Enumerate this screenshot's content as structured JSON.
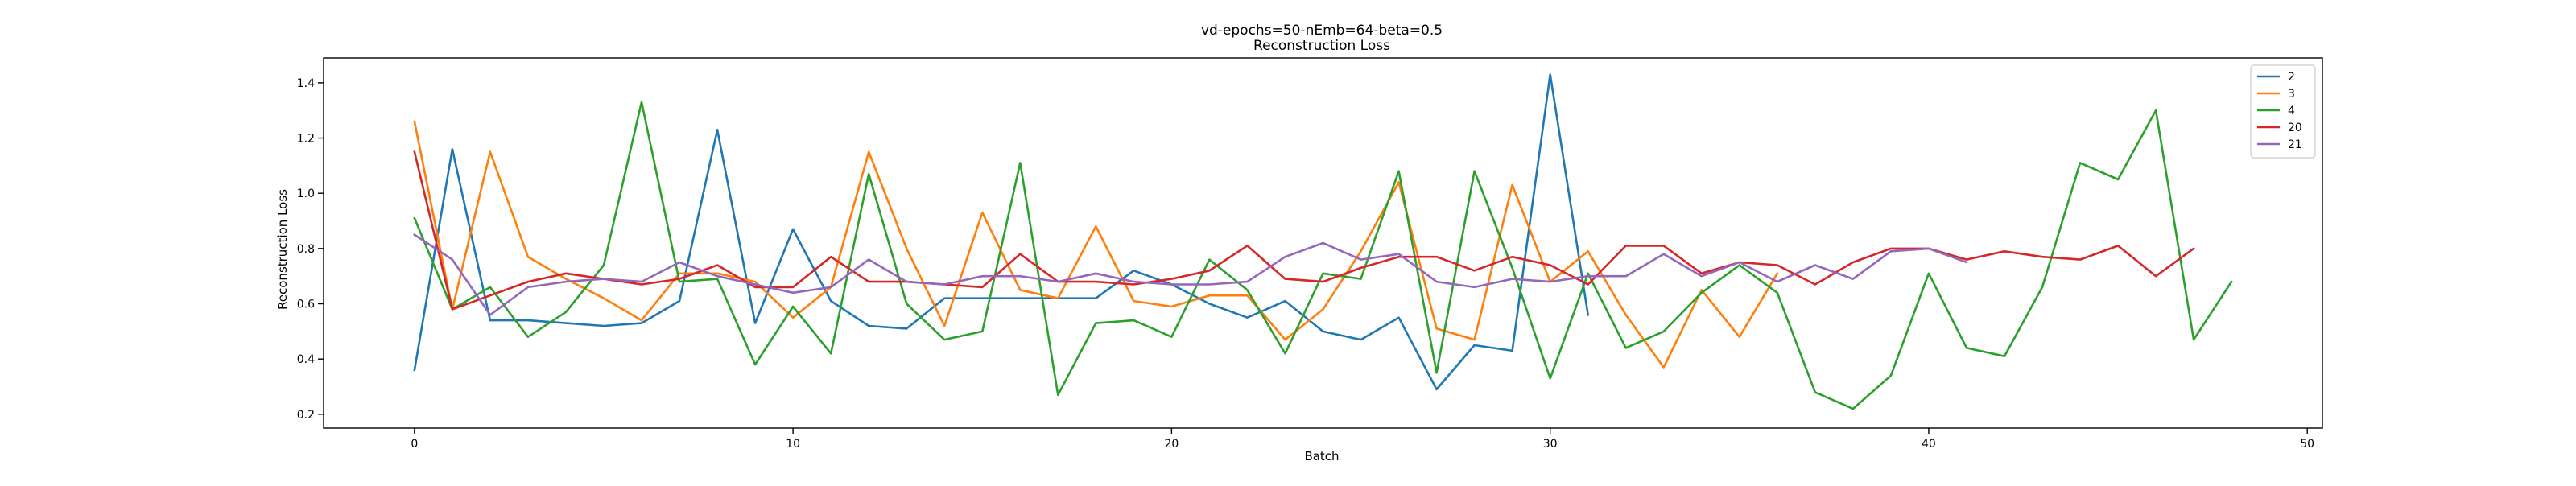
{
  "chart_data": {
    "type": "line",
    "title": "vd-epochs=50-nEmb=64-beta=0.5",
    "subtitle": "Reconstruction Loss",
    "xlabel": "Batch",
    "ylabel": "Reconstruction Loss",
    "xlim": [
      -2.4,
      50.4
    ],
    "ylim": [
      0.15,
      1.49
    ],
    "xticks": [
      0,
      10,
      20,
      30,
      40,
      50
    ],
    "yticks": [
      0.2,
      0.4,
      0.6,
      0.8,
      1.0,
      1.2,
      1.4
    ],
    "xtick_labels": [
      "0",
      "10",
      "20",
      "30",
      "40",
      "50"
    ],
    "ytick_labels": [
      "0.2",
      "0.4",
      "0.6",
      "0.8",
      "1.0",
      "1.2",
      "1.4"
    ],
    "grid": false,
    "legend_position": "top-right",
    "series": [
      {
        "name": "2",
        "color": "#1f77b4",
        "x": [
          0,
          1,
          2,
          3,
          4,
          5,
          6,
          7,
          8,
          9,
          10,
          11,
          12,
          13,
          14,
          15,
          16,
          17,
          18,
          19,
          20,
          21,
          22,
          23,
          24,
          25,
          26,
          27,
          28,
          29,
          30,
          31
        ],
        "values": [
          0.36,
          1.16,
          0.54,
          0.54,
          0.53,
          0.52,
          0.53,
          0.61,
          1.23,
          0.53,
          0.87,
          0.61,
          0.52,
          0.51,
          0.62,
          0.62,
          0.62,
          0.62,
          0.62,
          0.72,
          0.67,
          0.6,
          0.55,
          0.61,
          0.5,
          0.47,
          0.55,
          0.29,
          0.45,
          0.43,
          1.43,
          0.56
        ]
      },
      {
        "name": "3",
        "color": "#ff7f0e",
        "x": [
          0,
          1,
          2,
          3,
          4,
          5,
          6,
          7,
          8,
          9,
          10,
          11,
          12,
          13,
          14,
          15,
          16,
          17,
          18,
          19,
          20,
          21,
          22,
          23,
          24,
          25,
          26,
          27,
          28,
          29,
          30,
          31,
          32,
          33,
          34,
          35,
          36
        ],
        "values": [
          1.26,
          0.58,
          1.15,
          0.77,
          0.69,
          0.62,
          0.54,
          0.71,
          0.71,
          0.68,
          0.55,
          0.66,
          1.15,
          0.8,
          0.52,
          0.93,
          0.65,
          0.62,
          0.88,
          0.61,
          0.59,
          0.63,
          0.63,
          0.47,
          0.58,
          0.79,
          1.04,
          0.51,
          0.47,
          1.03,
          0.68,
          0.79,
          0.56,
          0.37,
          0.65,
          0.48,
          0.71
        ]
      },
      {
        "name": "4",
        "color": "#2ca02c",
        "x": [
          0,
          1,
          2,
          3,
          4,
          5,
          6,
          7,
          8,
          9,
          10,
          11,
          12,
          13,
          14,
          15,
          16,
          17,
          18,
          19,
          20,
          21,
          22,
          23,
          24,
          25,
          26,
          27,
          28,
          29,
          30,
          31,
          32,
          33,
          34,
          35,
          36,
          37,
          38,
          39,
          40,
          41,
          42,
          43,
          44,
          45,
          46,
          47,
          48
        ],
        "values": [
          0.91,
          0.58,
          0.66,
          0.48,
          0.57,
          0.74,
          1.33,
          0.68,
          0.69,
          0.38,
          0.59,
          0.42,
          1.07,
          0.6,
          0.47,
          0.5,
          1.11,
          0.27,
          0.53,
          0.54,
          0.48,
          0.76,
          0.65,
          0.42,
          0.71,
          0.69,
          1.08,
          0.35,
          1.08,
          0.73,
          0.33,
          0.71,
          0.44,
          0.5,
          0.64,
          0.74,
          0.64,
          0.28,
          0.22,
          0.34,
          0.71,
          0.44,
          0.41,
          0.66,
          1.11,
          1.05,
          1.3,
          0.47,
          0.68
        ]
      },
      {
        "name": "20",
        "color": "#d62728",
        "x": [
          0,
          1,
          2,
          3,
          4,
          5,
          6,
          7,
          8,
          9,
          10,
          11,
          12,
          13,
          14,
          15,
          16,
          17,
          18,
          19,
          20,
          21,
          22,
          23,
          24,
          25,
          26,
          27,
          28,
          29,
          30,
          31,
          32,
          33,
          34,
          35,
          36,
          37,
          38,
          39,
          40,
          41,
          42,
          43,
          44,
          45,
          46,
          47
        ],
        "values": [
          1.15,
          0.58,
          0.63,
          0.68,
          0.71,
          0.69,
          0.67,
          0.69,
          0.74,
          0.66,
          0.66,
          0.77,
          0.68,
          0.68,
          0.67,
          0.66,
          0.78,
          0.68,
          0.68,
          0.67,
          0.69,
          0.72,
          0.81,
          0.69,
          0.68,
          0.73,
          0.77,
          0.77,
          0.72,
          0.77,
          0.74,
          0.67,
          0.81,
          0.81,
          0.71,
          0.75,
          0.74,
          0.67,
          0.75,
          0.8,
          0.8,
          0.76,
          0.79,
          0.77,
          0.76,
          0.81,
          0.7,
          0.8
        ]
      },
      {
        "name": "21",
        "color": "#9467bd",
        "x": [
          0,
          1,
          2,
          3,
          4,
          5,
          6,
          7,
          8,
          9,
          10,
          11,
          12,
          13,
          14,
          15,
          16,
          17,
          18,
          19,
          20,
          21,
          22,
          23,
          24,
          25,
          26,
          27,
          28,
          29,
          30,
          31,
          32,
          33,
          34,
          35,
          36,
          37,
          38,
          39,
          40,
          41
        ],
        "values": [
          0.85,
          0.76,
          0.56,
          0.66,
          0.68,
          0.69,
          0.68,
          0.75,
          0.7,
          0.67,
          0.64,
          0.66,
          0.76,
          0.68,
          0.67,
          0.7,
          0.7,
          0.68,
          0.71,
          0.68,
          0.67,
          0.67,
          0.68,
          0.77,
          0.82,
          0.76,
          0.78,
          0.68,
          0.66,
          0.69,
          0.68,
          0.7,
          0.7,
          0.78,
          0.7,
          0.75,
          0.68,
          0.74,
          0.69,
          0.79,
          0.8,
          0.75
        ]
      }
    ]
  }
}
